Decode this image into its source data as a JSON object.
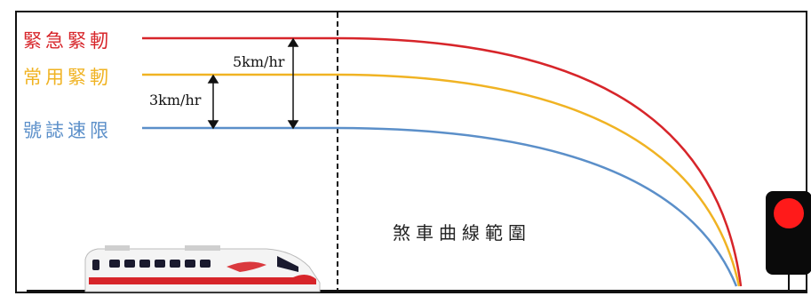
{
  "lines": {
    "emergency_brake": {
      "label": "緊急緊軔",
      "color": "#d7252a"
    },
    "service_brake": {
      "label": "常用緊軔",
      "color": "#f0b323"
    },
    "signal_limit": {
      "label": "號誌速限",
      "color": "#5b8fc9"
    }
  },
  "measurements": {
    "upper": "5km/hr",
    "lower": "3km/hr"
  },
  "braking_area_label": "煞車曲線範圍",
  "signal": {
    "lamp_color": "#ff1a1a"
  },
  "train": {
    "body_color": "#f4f4f4",
    "stripe_color": "#d7252a",
    "window_color": "#1a1a2e"
  }
}
